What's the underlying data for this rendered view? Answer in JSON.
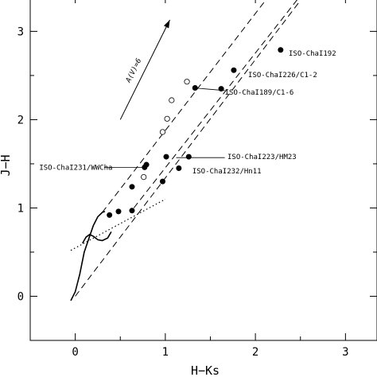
{
  "chart_data": {
    "type": "scatter",
    "xlabel": "H−Ks",
    "ylabel": "J−H",
    "xlim": [
      -0.5,
      3.35
    ],
    "ylim": [
      -0.5,
      3.4
    ],
    "x_ticks": [
      "0",
      "1",
      "2",
      "3"
    ],
    "y_ticks": [
      "0",
      "1",
      "2",
      "3"
    ],
    "grid": false,
    "filled_points": [
      {
        "x": 0.38,
        "y": 0.92
      },
      {
        "x": 0.48,
        "y": 0.96
      },
      {
        "x": 0.63,
        "y": 0.97
      },
      {
        "x": 0.63,
        "y": 1.24
      },
      {
        "x": 0.77,
        "y": 1.46
      },
      {
        "x": 0.79,
        "y": 1.49
      },
      {
        "x": 0.97,
        "y": 1.3
      },
      {
        "x": 1.01,
        "y": 1.58
      },
      {
        "x": 1.15,
        "y": 1.45
      },
      {
        "x": 1.26,
        "y": 1.58
      },
      {
        "x": 1.33,
        "y": 2.36
      },
      {
        "x": 1.62,
        "y": 2.35
      },
      {
        "x": 1.76,
        "y": 2.56
      },
      {
        "x": 2.28,
        "y": 2.79
      }
    ],
    "open_points": [
      {
        "x": 0.76,
        "y": 1.35
      },
      {
        "x": 0.97,
        "y": 1.86
      },
      {
        "x": 1.02,
        "y": 2.01
      },
      {
        "x": 1.07,
        "y": 2.22
      },
      {
        "x": 1.24,
        "y": 2.43
      }
    ],
    "reddening_lines": [
      {
        "x": [
          0.3,
          2.3
        ],
        "y": [
          0.95,
          3.6
        ]
      },
      {
        "x": [
          0.65,
          2.65
        ],
        "y": [
          1.0,
          3.6
        ]
      },
      {
        "x": [
          0.0,
          2.5
        ],
        "y": [
          0.0,
          3.35
        ]
      }
    ],
    "ctts_locus": {
      "x": [
        -0.05,
        1.0
      ],
      "y": [
        0.52,
        1.1
      ]
    },
    "dwarf_sequence": {
      "x": [
        -0.05,
        0.0,
        0.05,
        0.1,
        0.15,
        0.2,
        0.25,
        0.3,
        0.33
      ],
      "y": [
        -0.05,
        0.05,
        0.25,
        0.5,
        0.65,
        0.8,
        0.9,
        0.95,
        0.96
      ]
    },
    "giant_sequence": {
      "x": [
        0.08,
        0.12,
        0.16,
        0.2,
        0.25,
        0.3,
        0.36,
        0.4
      ],
      "y": [
        0.6,
        0.67,
        0.7,
        0.68,
        0.64,
        0.63,
        0.66,
        0.73
      ]
    },
    "reddening_arrow": {
      "x": [
        0.5,
        1.05
      ],
      "y": [
        2.0,
        3.13
      ],
      "label": "A(V)=6"
    },
    "annotations": [
      {
        "text": "ISO-ChaI192",
        "x": 2.37,
        "y": 2.75
      },
      {
        "text": "ISO-ChaI226/C1-2",
        "x": 1.92,
        "y": 2.51
      },
      {
        "text": "ISO-ChaI189/C1-6",
        "x": 1.66,
        "y": 2.31
      },
      {
        "text": "ISO-ChaI223/HM23",
        "x": 1.69,
        "y": 1.58
      },
      {
        "text": "ISO-ChaI231/WWCha",
        "x": -0.4,
        "y": 1.46
      },
      {
        "text": "ISO-ChaI232/Hn11",
        "x": 1.3,
        "y": 1.42
      }
    ],
    "leader_lines": [
      {
        "x": [
          1.31,
          1.66
        ],
        "y": [
          2.36,
          2.33
        ]
      },
      {
        "x": [
          1.12,
          1.66
        ],
        "y": [
          1.57,
          1.57
        ]
      },
      {
        "x": [
          0.32,
          0.77
        ],
        "y": [
          1.46,
          1.46
        ]
      }
    ]
  }
}
